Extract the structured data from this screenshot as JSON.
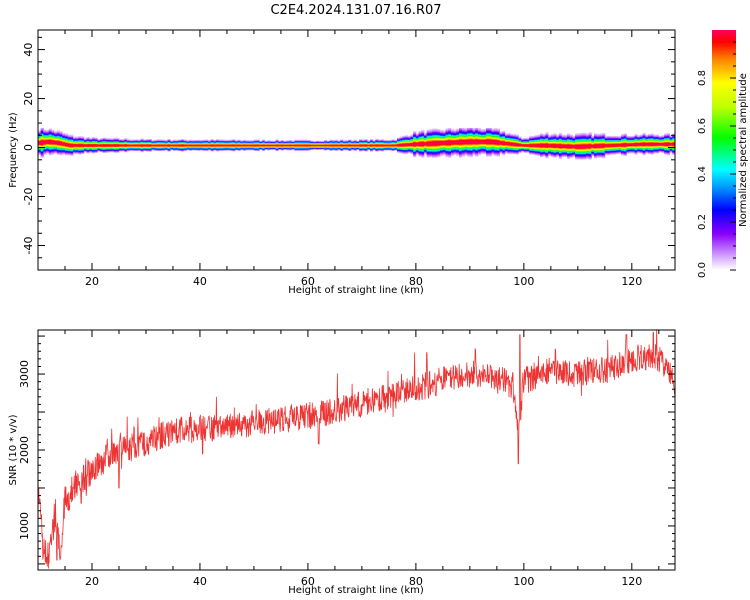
{
  "title": "C2E4.2024.131.07.16.R07",
  "chart_data": [
    {
      "type": "heatmap",
      "xlabel": "Height of straight line (km)",
      "ylabel": "Frequency (Hz)",
      "xlim": [
        10,
        128
      ],
      "ylim": [
        -50,
        48
      ],
      "xticks": [
        20,
        40,
        60,
        80,
        100,
        120
      ],
      "yticks": [
        40,
        20,
        0,
        -20,
        -40
      ],
      "ytick_labels": [
        "40",
        "20",
        "0",
        "-20",
        "-40"
      ],
      "colorbar": {
        "label": "Normalized spectral amplitude",
        "ticks": [
          0.0,
          0.2,
          0.4,
          0.6,
          0.8
        ],
        "tick_labels": [
          "0.0",
          "0.2",
          "0.4",
          "0.6",
          "0.8"
        ],
        "range": [
          0,
          1
        ],
        "colormap": "rainbow (white-violet-blue-cyan-green-yellow-red)"
      },
      "band_center_hz": [
        [
          10,
          2
        ],
        [
          12,
          2.5
        ],
        [
          14,
          2
        ],
        [
          16,
          1
        ],
        [
          18,
          1
        ],
        [
          22,
          1
        ],
        [
          30,
          1
        ],
        [
          40,
          1
        ],
        [
          60,
          1
        ],
        [
          76,
          1
        ],
        [
          80,
          1.5
        ],
        [
          85,
          2
        ],
        [
          90,
          2.5
        ],
        [
          94,
          2.5
        ],
        [
          98,
          1.5
        ],
        [
          100,
          1
        ],
        [
          104,
          1
        ],
        [
          110,
          0.5
        ],
        [
          116,
          1
        ],
        [
          122,
          1.5
        ],
        [
          128,
          1.5
        ]
      ],
      "band_halfwidth_hz": [
        [
          10,
          3
        ],
        [
          16,
          2
        ],
        [
          20,
          1.5
        ],
        [
          30,
          1.2
        ],
        [
          60,
          1.0
        ],
        [
          76,
          1.2
        ],
        [
          80,
          2.5
        ],
        [
          90,
          3
        ],
        [
          96,
          2.5
        ],
        [
          100,
          1.5
        ],
        [
          104,
          2.5
        ],
        [
          112,
          2.5
        ],
        [
          120,
          2
        ],
        [
          128,
          2
        ]
      ]
    },
    {
      "type": "line",
      "xlabel": "Height of straight line (km)",
      "ylabel": "SNR (10 * v/v)",
      "xlim": [
        10,
        128
      ],
      "ylim": [
        420,
        3580
      ],
      "xticks": [
        20,
        40,
        60,
        80,
        100,
        120
      ],
      "yticks": [
        1000,
        2000,
        3000
      ],
      "color": "#ee3333",
      "trend": [
        [
          10,
          1400
        ],
        [
          11,
          700
        ],
        [
          12,
          550
        ],
        [
          13,
          1100
        ],
        [
          14,
          650
        ],
        [
          15,
          1300
        ],
        [
          17,
          1550
        ],
        [
          20,
          1750
        ],
        [
          22,
          1850
        ],
        [
          24,
          2000
        ],
        [
          26,
          2000
        ],
        [
          30,
          2100
        ],
        [
          35,
          2250
        ],
        [
          40,
          2280
        ],
        [
          45,
          2300
        ],
        [
          50,
          2350
        ],
        [
          60,
          2450
        ],
        [
          70,
          2600
        ],
        [
          80,
          2800
        ],
        [
          86,
          2950
        ],
        [
          90,
          3000
        ],
        [
          95,
          2950
        ],
        [
          98,
          2850
        ],
        [
          99,
          2300
        ],
        [
          100,
          2900
        ],
        [
          104,
          3050
        ],
        [
          110,
          3000
        ],
        [
          115,
          3050
        ],
        [
          120,
          3200
        ],
        [
          124,
          3250
        ],
        [
          126,
          3150
        ],
        [
          128,
          2850
        ]
      ],
      "spikes": [
        [
          99,
          1820
        ],
        [
          99.3,
          3520
        ],
        [
          91,
          3330
        ],
        [
          82,
          3280
        ],
        [
          119,
          3520
        ],
        [
          124,
          3550
        ],
        [
          62,
          2080
        ],
        [
          40.5,
          1950
        ],
        [
          25,
          1500
        ],
        [
          18,
          1300
        ],
        [
          13.5,
          550
        ]
      ]
    }
  ]
}
